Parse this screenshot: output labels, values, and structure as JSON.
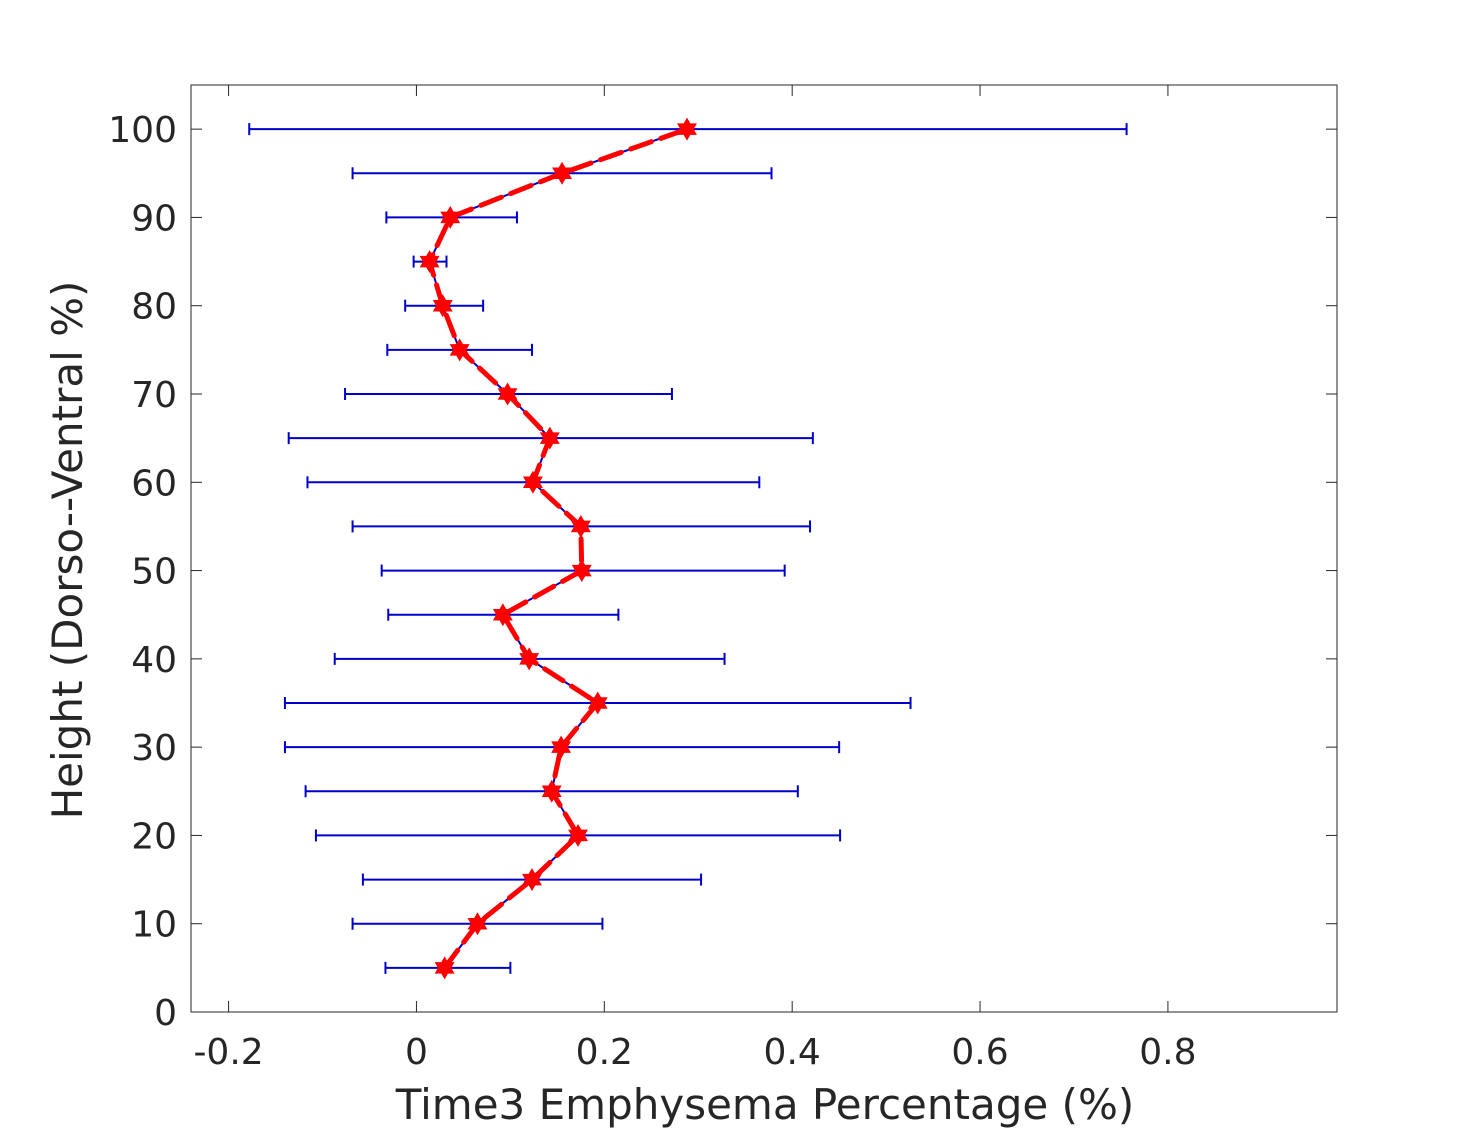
{
  "chart_data": {
    "type": "scatter",
    "title": "",
    "xlabel": "Time3 Emphysema Percentage (%)",
    "ylabel": "Height (Dorso--Ventral %)",
    "xlim": [
      -0.24,
      0.98
    ],
    "ylim": [
      0,
      105
    ],
    "xticks": [
      -0.2,
      0,
      0.2,
      0.4,
      0.6,
      0.8
    ],
    "xtick_labels": [
      "-0.2",
      "0",
      "0.2",
      "0.4",
      "0.6",
      "0.8"
    ],
    "yticks": [
      0,
      10,
      20,
      30,
      40,
      50,
      60,
      70,
      80,
      90,
      100
    ],
    "ytick_labels": [
      "0",
      "10",
      "20",
      "30",
      "40",
      "50",
      "60",
      "70",
      "80",
      "90",
      "100"
    ],
    "grid": false,
    "box": true,
    "series": [
      {
        "marker": "hexagram",
        "line_color": "#0000cc",
        "marker_color": "#ff0000",
        "fit_line_style": "dashed",
        "points": [
          {
            "y": 5,
            "x": 0.03,
            "err_low": -0.033,
            "err_high": 0.1
          },
          {
            "y": 10,
            "x": 0.065,
            "err_low": -0.068,
            "err_high": 0.198
          },
          {
            "y": 15,
            "x": 0.123,
            "err_low": -0.057,
            "err_high": 0.303
          },
          {
            "y": 20,
            "x": 0.172,
            "err_low": -0.107,
            "err_high": 0.451
          },
          {
            "y": 25,
            "x": 0.144,
            "err_low": -0.118,
            "err_high": 0.406
          },
          {
            "y": 30,
            "x": 0.154,
            "err_low": -0.14,
            "err_high": 0.45
          },
          {
            "y": 35,
            "x": 0.193,
            "err_low": -0.14,
            "err_high": 0.526
          },
          {
            "y": 40,
            "x": 0.12,
            "err_low": -0.087,
            "err_high": 0.328
          },
          {
            "y": 45,
            "x": 0.092,
            "err_low": -0.03,
            "err_high": 0.215
          },
          {
            "y": 50,
            "x": 0.176,
            "err_low": -0.037,
            "err_high": 0.392
          },
          {
            "y": 55,
            "x": 0.175,
            "err_low": -0.068,
            "err_high": 0.419
          },
          {
            "y": 60,
            "x": 0.124,
            "err_low": -0.116,
            "err_high": 0.365
          },
          {
            "y": 65,
            "x": 0.142,
            "err_low": -0.136,
            "err_high": 0.422
          },
          {
            "y": 70,
            "x": 0.097,
            "err_low": -0.076,
            "err_high": 0.272
          },
          {
            "y": 75,
            "x": 0.046,
            "err_low": -0.031,
            "err_high": 0.123
          },
          {
            "y": 80,
            "x": 0.028,
            "err_low": -0.012,
            "err_high": 0.071
          },
          {
            "y": 85,
            "x": 0.014,
            "err_low": -0.003,
            "err_high": 0.032
          },
          {
            "y": 90,
            "x": 0.036,
            "err_low": -0.032,
            "err_high": 0.107
          },
          {
            "y": 95,
            "x": 0.155,
            "err_low": -0.068,
            "err_high": 0.378
          },
          {
            "y": 100,
            "x": 0.288,
            "err_low": -0.178,
            "err_high": 0.756
          }
        ]
      }
    ]
  }
}
